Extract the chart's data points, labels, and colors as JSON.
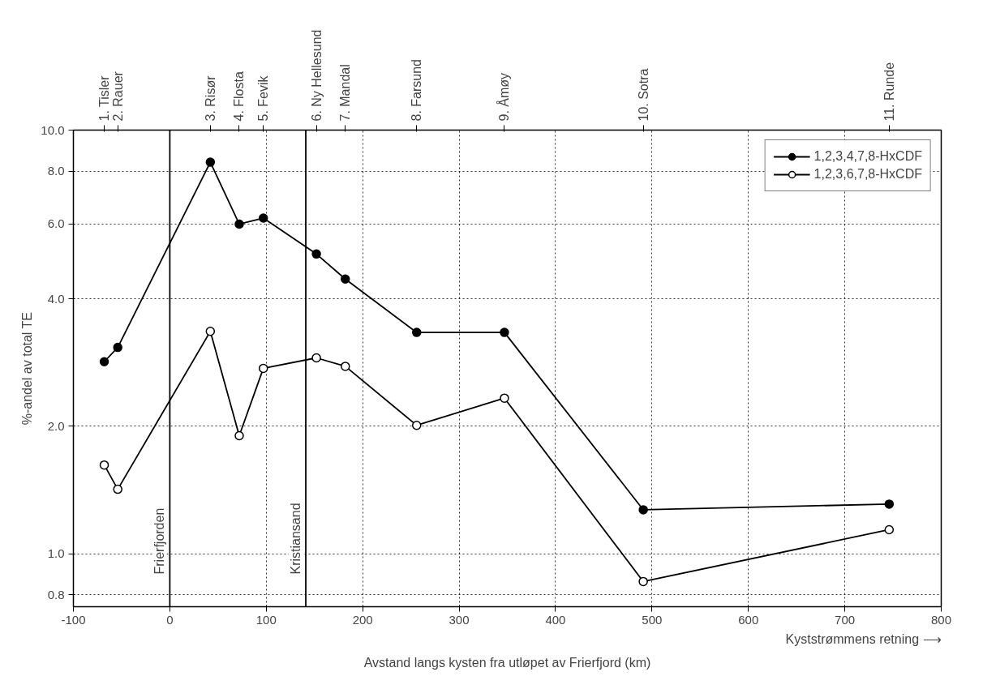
{
  "chart_data": {
    "type": "line",
    "xlabel": "Avstand langs kysten fra utløpet av Frierfjord (km)",
    "ylabel": "%-andel av total TE",
    "x": [
      -68,
      -54,
      42,
      72,
      97,
      152,
      182,
      256,
      347,
      491,
      746
    ],
    "series": [
      {
        "name": "1,2,3,4,7,8-HxCDF",
        "color": "#000000",
        "marker": "circle",
        "values": [
          2.84,
          3.07,
          8.4,
          6.0,
          6.2,
          5.1,
          4.45,
          3.33,
          3.33,
          1.27,
          1.31
        ]
      },
      {
        "name": "1,2,3,6,7,8-HxCDF",
        "color": "#000000",
        "marker": "circle_open",
        "values": [
          1.62,
          1.42,
          3.35,
          1.9,
          2.74,
          2.9,
          2.77,
          2.01,
          2.33,
          0.86,
          1.14
        ]
      }
    ],
    "log": "y",
    "xlim": [
      -100,
      800
    ],
    "xticks": [
      -100,
      0,
      100,
      200,
      300,
      400,
      500,
      600,
      700,
      800
    ],
    "ylim": [
      0.75,
      10
    ],
    "yticks": [
      {
        "value": 0.8,
        "label": "0.8"
      },
      {
        "value": 1,
        "label": "1.0"
      },
      {
        "value": 2,
        "label": "2.0"
      },
      {
        "value": 4,
        "label": "4.0"
      },
      {
        "value": 6,
        "label": "6.0"
      },
      {
        "value": 8,
        "label": "8.0"
      },
      {
        "value": 10,
        "label": "10.0"
      }
    ],
    "ref_lines": [
      {
        "axis": "x",
        "value": 0,
        "label": "Frierfjorden",
        "color": "#000000"
      },
      {
        "axis": "x",
        "value": 141,
        "label": "Kristiansand",
        "color": "#000000"
      }
    ],
    "annotations": [
      "Kyststrømmens retning ⟶",
      {
        "text": "1. Tisler",
        "x": -68
      },
      {
        "text": "2. Rauer",
        "x": -54
      },
      {
        "text": "3. Risør",
        "x": 42
      },
      {
        "text": "4. Flosta",
        "x": 72
      },
      {
        "text": "5. Fevik",
        "x": 97
      },
      {
        "text": "6. Ny Hellesund",
        "x": 152
      },
      {
        "text": "7. Mandal",
        "x": 182
      },
      {
        "text": "8. Farsund",
        "x": 256
      },
      {
        "text": "9. Åmøy",
        "x": 347
      },
      {
        "text": "10. Sotra",
        "x": 491
      },
      {
        "text": "11. Runde",
        "x": 746
      }
    ],
    "grid": true,
    "legend": "top right",
    "line_style": "solid"
  }
}
